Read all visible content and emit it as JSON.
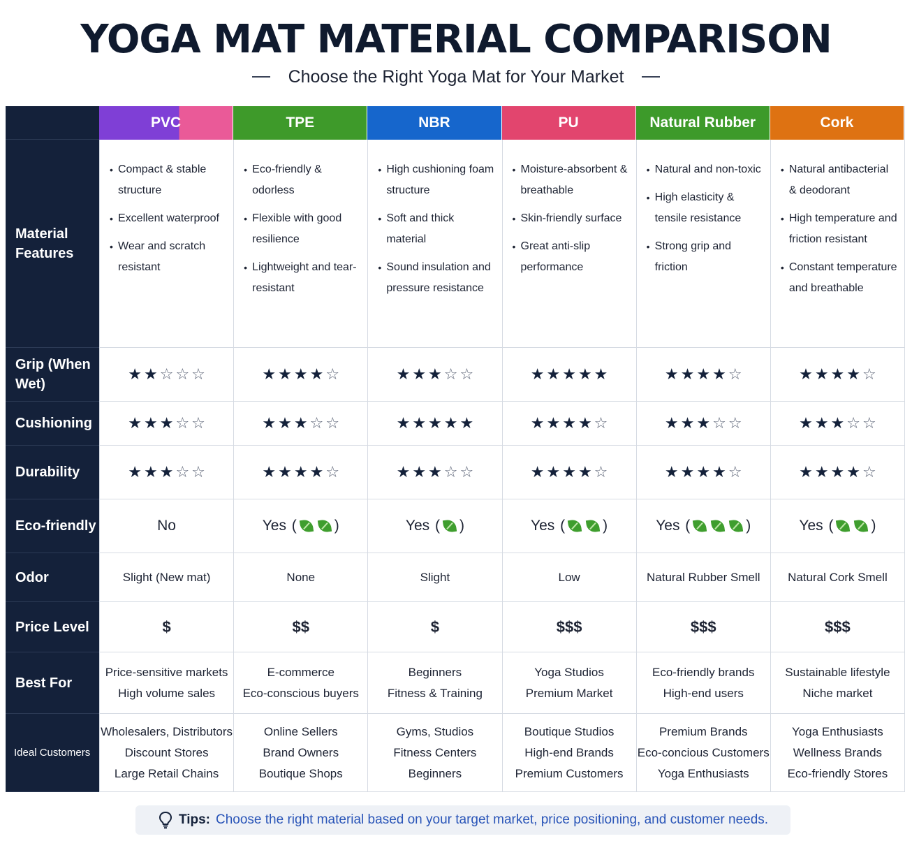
{
  "title": "YOGA MAT MATERIAL COMPARISON",
  "subtitle": "Choose the Right Yoga Mat for Your Market",
  "materials": [
    "PVC",
    "TPE",
    "NBR",
    "PU",
    "Natural Rubber",
    "Cork"
  ],
  "row_labels": {
    "features": "Material Features",
    "grip": "Grip (When Wet)",
    "cushioning": "Cushioning",
    "durability": "Durability",
    "eco": "Eco-friendly",
    "odor": "Odor",
    "price": "Price Level",
    "best_for": "Best For",
    "ideal": "Ideal Customers"
  },
  "features": [
    [
      "Compact & stable structure",
      "Excellent waterproof",
      "Wear and scratch resistant"
    ],
    [
      "Eco-friendly & odorless",
      "Flexible with good resilience",
      "Lightweight and tear-resistant"
    ],
    [
      "High cushioning foam structure",
      "Soft and thick material",
      "Sound insulation and pressure resistance"
    ],
    [
      "Moisture-absorbent & breathable",
      "Skin-friendly surface",
      "Great anti-slip performance"
    ],
    [
      "Natural and non-toxic",
      "High elasticity & tensile resistance",
      "Strong grip and friction"
    ],
    [
      "Natural antibacterial & deodorant",
      "High temperature and friction resistant",
      "Constant temperature and breathable"
    ]
  ],
  "ratings": {
    "max": 5,
    "grip": [
      2,
      4,
      3,
      5,
      4,
      4
    ],
    "cushioning": [
      3,
      3,
      5,
      4,
      3,
      3
    ],
    "durability": [
      3,
      4,
      3,
      4,
      4,
      4
    ]
  },
  "eco": [
    {
      "text": "No",
      "leaves": 0
    },
    {
      "text": "Yes",
      "leaves": 2
    },
    {
      "text": "Yes",
      "leaves": 1
    },
    {
      "text": "Yes",
      "leaves": 2
    },
    {
      "text": "Yes",
      "leaves": 3
    },
    {
      "text": "Yes",
      "leaves": 2
    }
  ],
  "odor": [
    "Slight (New mat)",
    "None",
    "Slight",
    "Low",
    "Natural Rubber Smell",
    "Natural Cork Smell"
  ],
  "price": [
    "$",
    "$$",
    "$",
    "$$$",
    "$$$",
    "$$$"
  ],
  "best_for": [
    [
      "Price-sensitive markets",
      "High volume sales"
    ],
    [
      "E-commerce",
      "Eco-conscious buyers"
    ],
    [
      "Beginners",
      "Fitness & Training"
    ],
    [
      "Yoga Studios",
      "Premium Market"
    ],
    [
      "Eco-friendly brands",
      "High-end users"
    ],
    [
      "Sustainable lifestyle",
      "Niche market"
    ]
  ],
  "ideal_customers": [
    [
      "Wholesalers, Distributors",
      "Discount Stores",
      "Large Retail Chains"
    ],
    [
      "Online Sellers",
      "Brand Owners",
      "Boutique Shops"
    ],
    [
      "Gyms, Studios",
      "Fitness Centers",
      "Beginners"
    ],
    [
      "Boutique Studios",
      "High-end Brands",
      "Premium Customers"
    ],
    [
      "Premium Brands",
      "Eco-concious Customers",
      "Yoga Enthusiasts"
    ],
    [
      "Yoga Enthusiasts",
      "Wellness Brands",
      "Eco-friendly Stores"
    ]
  ],
  "tips": {
    "icon": "lightbulb-icon",
    "lead": "Tips:",
    "text": "Choose the right material based on your target market, price positioning, and customer needs."
  },
  "colors": {
    "dark": "#14213a",
    "pvc": "#7f3fd6",
    "pvc_accent": "#ea5a98",
    "tpe": "#3e9a2a",
    "nbr": "#1666cc",
    "pu": "#e2456e",
    "natural_rubber": "#3d9a2a",
    "cork": "#de7212",
    "leaf": "#3f9e2e"
  }
}
